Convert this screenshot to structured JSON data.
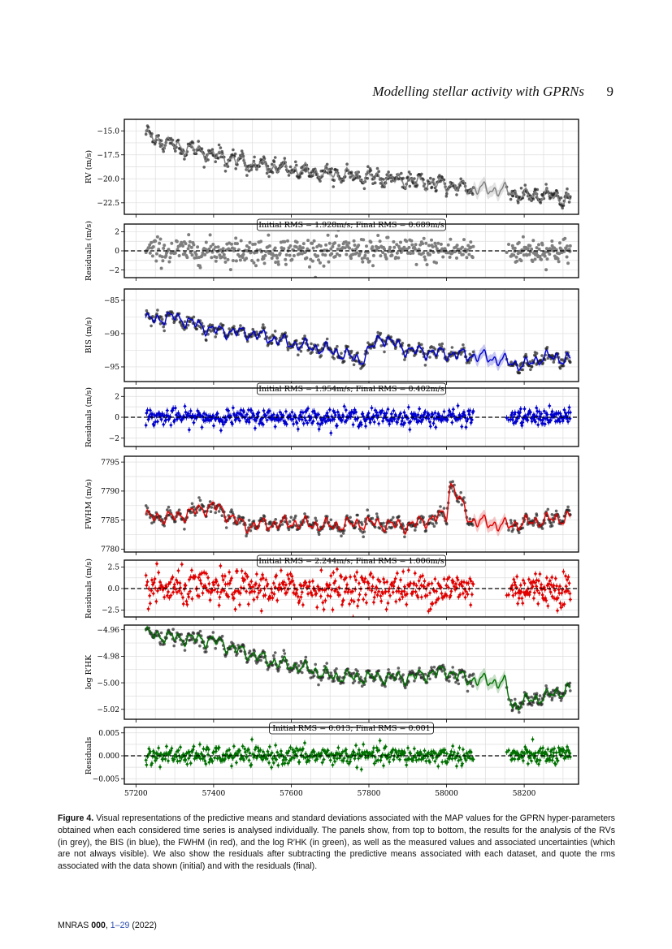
{
  "header": {
    "title": "Modelling stellar activity with GPRNs",
    "page": "9"
  },
  "caption": {
    "label": "Figure 4.",
    "text": "Visual representations of the predictive means and standard deviations associated with the MAP values for the GPRN hyper-parameters obtained when each considered time series is analysed individually. The panels show, from top to bottom, the results for the analysis of the RVs (in grey), the BIS (in blue), the FWHM (in red), and the log R′HK (in green), as well as the measured values and associated uncertainties (which are not always visible). We also show the residuals after subtracting the predictive means associated with each dataset, and quote the rms associated with the data shown (initial) and with the residuals (final)."
  },
  "footer": {
    "journal": "MNRAS",
    "volume": "000",
    "pages": "1–29",
    "year": "(2022)"
  },
  "chart_data": [
    {
      "type": "line",
      "ylabel": "RV (m/s)",
      "color": "#7f7f7f",
      "xlim": [
        57170,
        58340
      ],
      "ylim": [
        -23.7,
        -13.8
      ],
      "yticks": [
        -15.0,
        -17.5,
        -20.0,
        -22.5
      ],
      "ytick_labels": [
        "−15.0",
        "−17.5",
        "−20.0",
        "−22.5"
      ],
      "series": [
        {
          "x": [
            57225,
            57300,
            57400,
            57500,
            57600,
            57700,
            57800,
            57900,
            58000,
            58060,
            58150,
            58200,
            58250,
            58320
          ],
          "y": [
            -15.5,
            -16.5,
            -17.5,
            -18.5,
            -19.0,
            -19.5,
            -19.8,
            -20.2,
            -20.6,
            -21.0,
            -21.2,
            -21.8,
            -21.7,
            -22.2
          ]
        }
      ]
    },
    {
      "type": "scatter",
      "ylabel": "Residuals (m/s)",
      "color": "#7f7f7f",
      "xlim": [
        57170,
        58340
      ],
      "ylim": [
        -2.8,
        2.8
      ],
      "yticks": [
        2,
        0,
        -2
      ],
      "ytick_labels": [
        "2",
        "0",
        "−2"
      ],
      "annotation": "Initial RMS = 1.928m/s; Final RMS = 0.689m/s",
      "summary": {
        "mean": 0,
        "rms": 0.689
      }
    },
    {
      "type": "line",
      "ylabel": "BIS (m/s)",
      "color": "#0000cc",
      "xlim": [
        57170,
        58340
      ],
      "ylim": [
        -97.2,
        -83.3
      ],
      "yticks": [
        -85,
        -90,
        -95
      ],
      "ytick_labels": [
        "−85",
        "−90",
        "−95"
      ],
      "series": [
        {
          "x": [
            57225,
            57250,
            57300,
            57400,
            57500,
            57600,
            57700,
            57780,
            57830,
            57900,
            58000,
            58100,
            58200,
            58250,
            58320
          ],
          "y": [
            -88.0,
            -87.8,
            -87.5,
            -89.5,
            -90.0,
            -91.5,
            -92.5,
            -94.0,
            -90.5,
            -92.5,
            -93.0,
            -93.5,
            -94.8,
            -93.5,
            -93.8
          ]
        }
      ]
    },
    {
      "type": "scatter",
      "ylabel": "Residuals (m/s)",
      "color": "#0000cc",
      "xlim": [
        57170,
        58340
      ],
      "ylim": [
        -2.8,
        2.8
      ],
      "yticks": [
        2,
        0,
        -2
      ],
      "ytick_labels": [
        "2",
        "0",
        "−2"
      ],
      "annotation": "Initial RMS = 1.954m/s; Final RMS = 0.402m/s",
      "summary": {
        "mean": 0,
        "rms": 0.402
      }
    },
    {
      "type": "line",
      "ylabel": "FWHM (m/s)",
      "color": "#e00000",
      "xlim": [
        57170,
        58340
      ],
      "ylim": [
        7779.5,
        7796.0
      ],
      "yticks": [
        7795,
        7790,
        7785,
        7780
      ],
      "ytick_labels": [
        "7795",
        "7790",
        "7785",
        "7780"
      ],
      "series": [
        {
          "x": [
            57225,
            57300,
            57400,
            57480,
            57600,
            57700,
            57800,
            57900,
            58000,
            58010,
            58060,
            58150,
            58200,
            58250,
            58320
          ],
          "y": [
            7785.5,
            7785.5,
            7787.5,
            7784.0,
            7784.5,
            7784.0,
            7784.5,
            7784.0,
            7786.0,
            7791.5,
            7785.0,
            7784.0,
            7784.5,
            7785.0,
            7785.5
          ]
        }
      ]
    },
    {
      "type": "scatter",
      "ylabel": "Residuals (m/s)",
      "color": "#e00000",
      "xlim": [
        57170,
        58340
      ],
      "ylim": [
        -3.3,
        3.3
      ],
      "yticks": [
        2.5,
        0.0,
        -2.5
      ],
      "ytick_labels": [
        "2.5",
        "0.0",
        "−2.5"
      ],
      "annotation": "Initial RMS = 2.244m/s; Final RMS = 1.006m/s",
      "summary": {
        "mean": 0,
        "rms": 1.006
      }
    },
    {
      "type": "line",
      "ylabel": "log R′HK",
      "color": "#007000",
      "xlim": [
        57170,
        58340
      ],
      "ylim": [
        -5.0275,
        -4.9565
      ],
      "yticks": [
        -4.96,
        -4.98,
        -5.0,
        -5.02
      ],
      "ytick_labels": [
        "−4.96",
        "−4.98",
        "−5.00",
        "−5.02"
      ],
      "series": [
        {
          "x": [
            57225,
            57300,
            57400,
            57450,
            57550,
            57650,
            57700,
            57800,
            57900,
            58000,
            58050,
            58150,
            58170,
            58200,
            58260,
            58320
          ],
          "y": [
            -4.963,
            -4.966,
            -4.968,
            -4.974,
            -4.984,
            -4.99,
            -4.995,
            -4.996,
            -4.996,
            -4.991,
            -4.997,
            -5.0,
            -5.018,
            -5.014,
            -5.01,
            -5.004
          ]
        }
      ]
    },
    {
      "type": "scatter",
      "ylabel": "Residuals",
      "color": "#007000",
      "xlim": [
        57170,
        58340
      ],
      "ylim": [
        -0.0062,
        0.0062
      ],
      "yticks": [
        0.005,
        0.0,
        -0.005
      ],
      "ytick_labels": [
        "0.005",
        "0.000",
        "−0.005"
      ],
      "annotation": "Initial RMS = 0.013; Final RMS = 0.001",
      "summary": {
        "mean": 0,
        "rms": 0.001
      }
    }
  ],
  "x_axis": {
    "ticks": [
      57200,
      57400,
      57600,
      57800,
      58000,
      58200
    ],
    "tick_labels": [
      "57200",
      "57400",
      "57600",
      "57800",
      "58000",
      "58200"
    ]
  }
}
